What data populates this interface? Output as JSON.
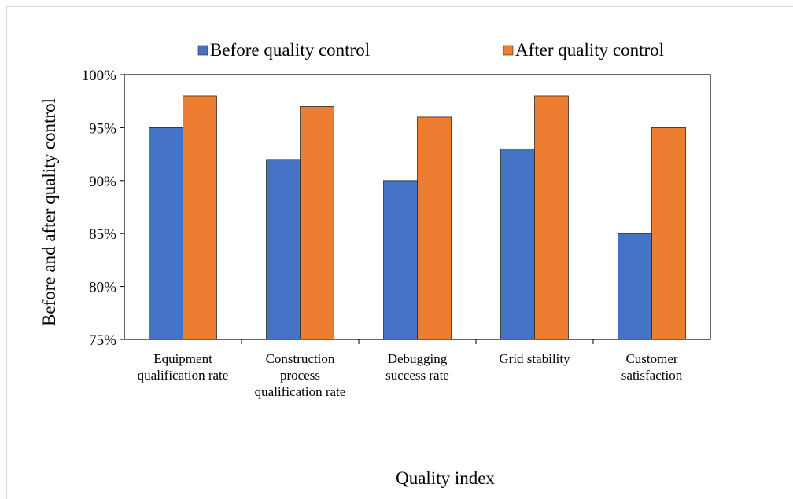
{
  "chart_data": {
    "type": "bar",
    "categories": [
      [
        "Equipment",
        "qualification rate"
      ],
      [
        "Construction",
        "process",
        "qualification rate"
      ],
      [
        "Debugging",
        "success rate"
      ],
      [
        "Grid stability"
      ],
      [
        "Customer",
        "satisfaction"
      ]
    ],
    "series": [
      {
        "name": "Before quality control",
        "color": "#4472C4",
        "values": [
          95,
          92,
          90,
          93,
          85
        ]
      },
      {
        "name": "After quality control",
        "color": "#ED7D31",
        "values": [
          98,
          97,
          96,
          98,
          95
        ]
      }
    ],
    "yticks": [
      "75%",
      "80%",
      "85%",
      "90%",
      "95%",
      "100%"
    ],
    "ylim": [
      75,
      100
    ],
    "xlabel": "Quality index",
    "ylabel": "Before and after quality control",
    "grid": false,
    "legend": "top"
  }
}
